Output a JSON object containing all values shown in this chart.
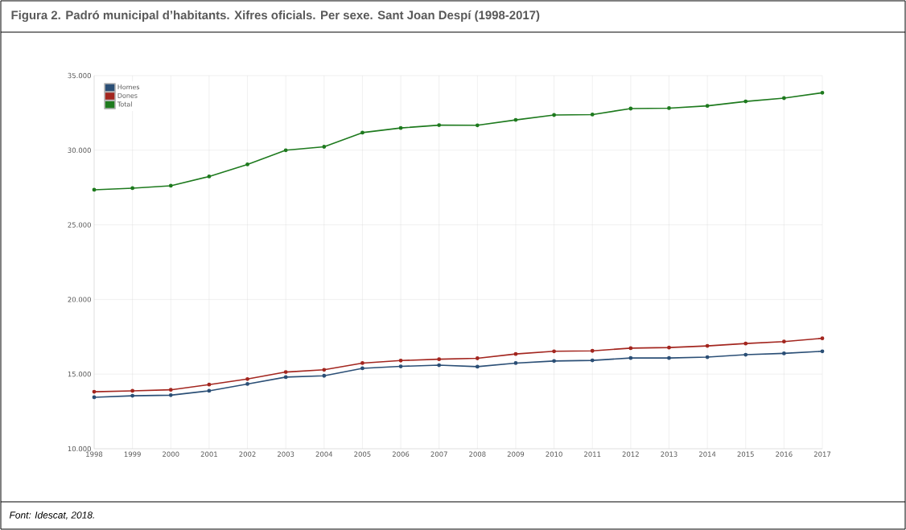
{
  "chart_data": {
    "type": "line",
    "title": "Figura 2. Padró municipal d’habitants. Xifres oficials. Per sexe. Sant Joan Despí (1998-2017)",
    "categories": [
      "1998",
      "1999",
      "2000",
      "2001",
      "2002",
      "2003",
      "2004",
      "2005",
      "2006",
      "2007",
      "2008",
      "2009",
      "2010",
      "2011",
      "2012",
      "2013",
      "2014",
      "2015",
      "2016",
      "2017"
    ],
    "series": [
      {
        "name": "Homes",
        "color": "#2b4f76",
        "values": [
          13450,
          13550,
          13590,
          13880,
          14340,
          14800,
          14890,
          15390,
          15520,
          15600,
          15500,
          15740,
          15880,
          15920,
          16080,
          16080,
          16140,
          16300,
          16390,
          16530
        ]
      },
      {
        "name": "Dones",
        "color": "#a3261f",
        "values": [
          13820,
          13880,
          13950,
          14300,
          14670,
          15140,
          15290,
          15740,
          15910,
          16000,
          16060,
          16350,
          16530,
          16560,
          16740,
          16780,
          16890,
          17050,
          17180,
          17400
        ]
      },
      {
        "name": "Total",
        "color": "#1e7a1e",
        "values": [
          27350,
          27460,
          27620,
          28240,
          29050,
          30000,
          30230,
          31180,
          31490,
          31680,
          31670,
          32030,
          32360,
          32390,
          32790,
          32820,
          32970,
          33270,
          33490,
          33850
        ]
      }
    ],
    "ylim": [
      10000,
      35000
    ],
    "yticks": [
      {
        "value": 10000,
        "label": "10.000"
      },
      {
        "value": 15000,
        "label": "15.000"
      },
      {
        "value": 20000,
        "label": "20.000"
      },
      {
        "value": 25000,
        "label": "25.000"
      },
      {
        "value": 30000,
        "label": "30.000"
      },
      {
        "value": 35000,
        "label": "35.000"
      }
    ],
    "grid": true,
    "legend": "top left",
    "marker": "circle",
    "line_style": "solid",
    "annotations": [
      "Font: Idescat, 2018."
    ]
  }
}
